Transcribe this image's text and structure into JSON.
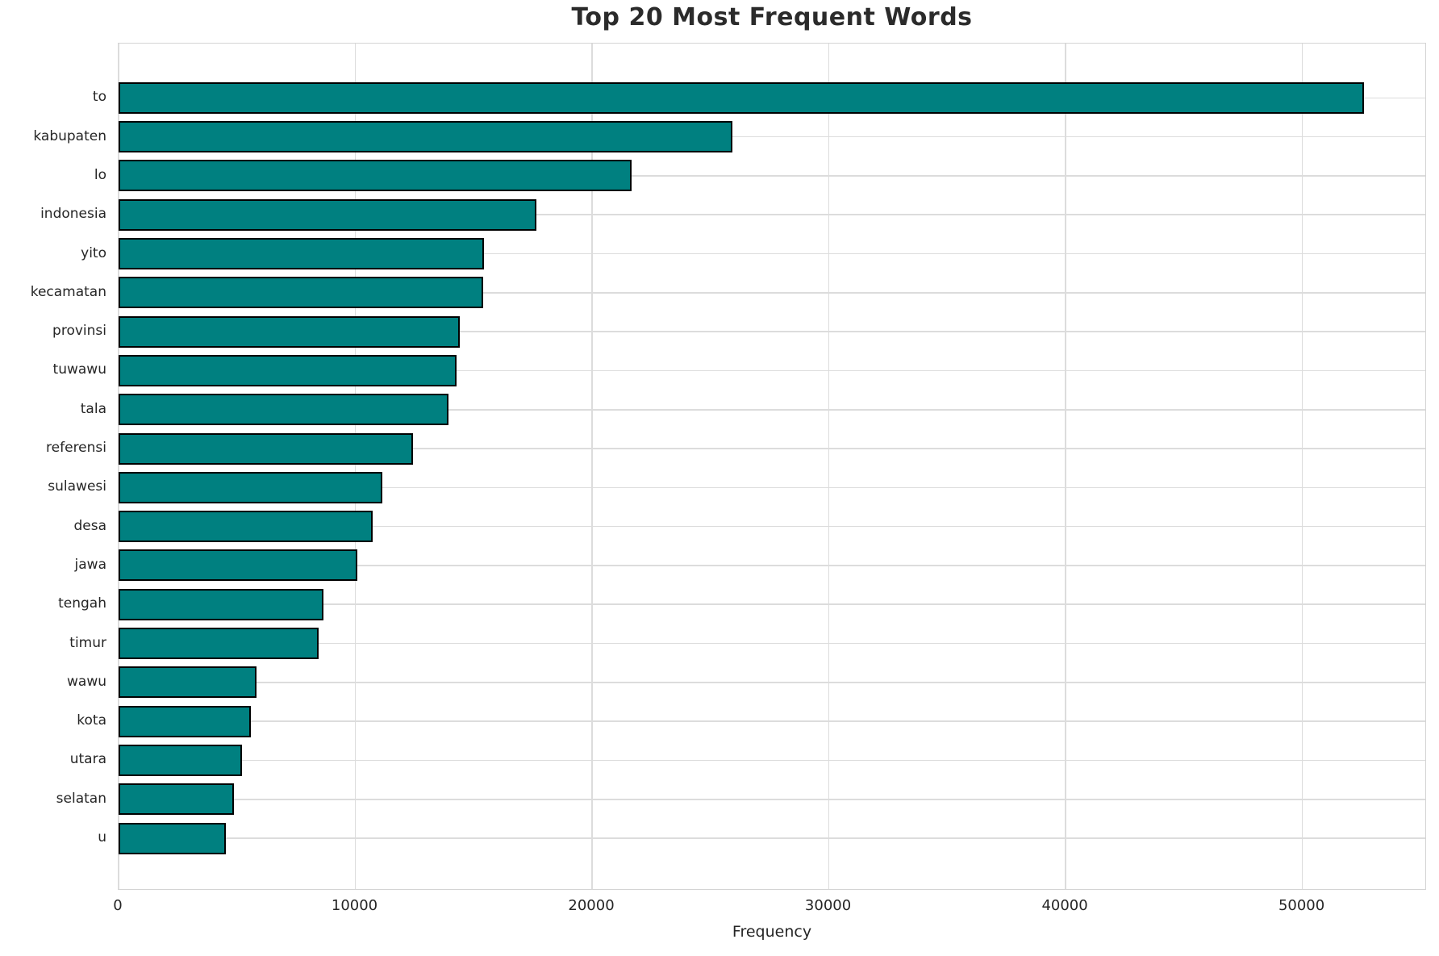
{
  "chart_data": {
    "type": "bar",
    "orientation": "horizontal",
    "title": "Top 20 Most Frequent Words",
    "xlabel": "Frequency",
    "ylabel": "",
    "categories": [
      "to",
      "kabupaten",
      "lo",
      "indonesia",
      "yito",
      "kecamatan",
      "provinsi",
      "tuwawu",
      "tala",
      "referensi",
      "sulawesi",
      "desa",
      "jawa",
      "tengah",
      "timur",
      "wawu",
      "kota",
      "utara",
      "selatan",
      "u"
    ],
    "values": [
      52660,
      25950,
      21690,
      17680,
      15440,
      15410,
      14420,
      14280,
      13960,
      12460,
      11140,
      10760,
      10110,
      8680,
      8450,
      5850,
      5590,
      5220,
      4880,
      4530
    ],
    "xticks": [
      0,
      10000,
      20000,
      30000,
      40000,
      50000
    ],
    "xlim": [
      0,
      55260
    ],
    "grid": true,
    "legend": "none",
    "bar_color": "#008080",
    "bar_edge_color": "#000000",
    "gridline_color": "#dcdcdc",
    "background_color": "#ffffff",
    "text_color": "#262626",
    "title_color": "#2b2b2b"
  }
}
